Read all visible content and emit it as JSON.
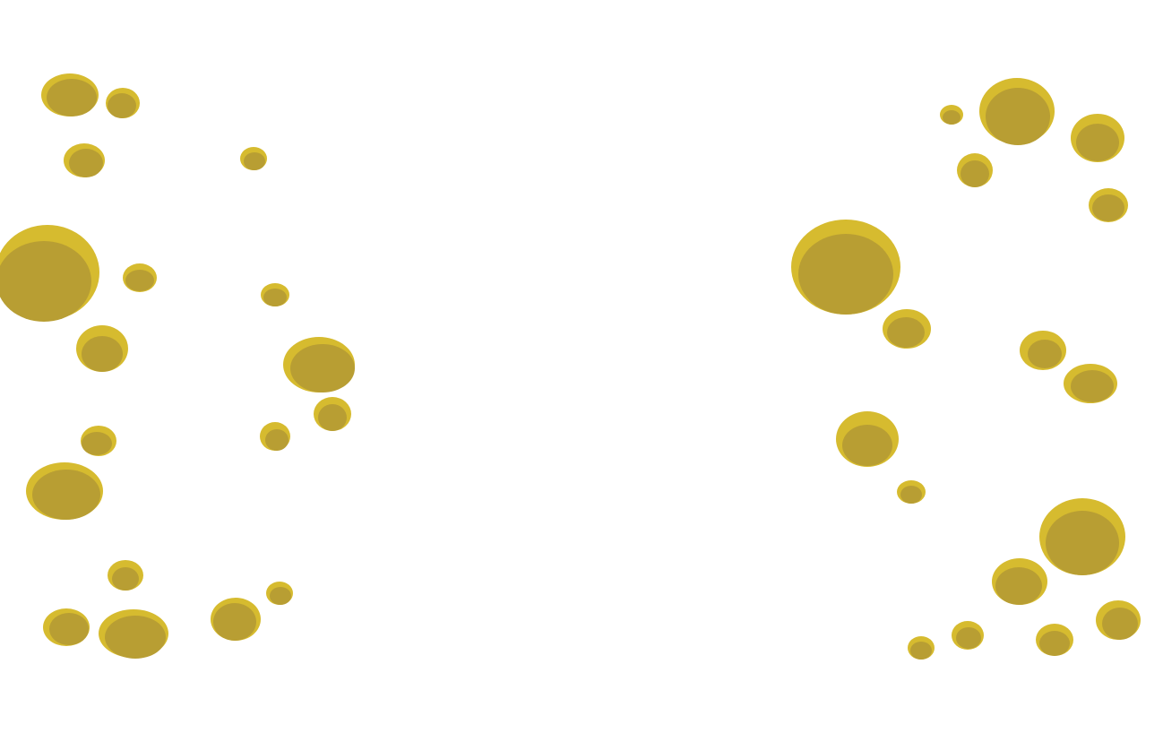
{
  "colors": {
    "background": "#ffffff",
    "spot_rim": "#d6bb2f",
    "spot_fill": "#b89e33"
  }
}
